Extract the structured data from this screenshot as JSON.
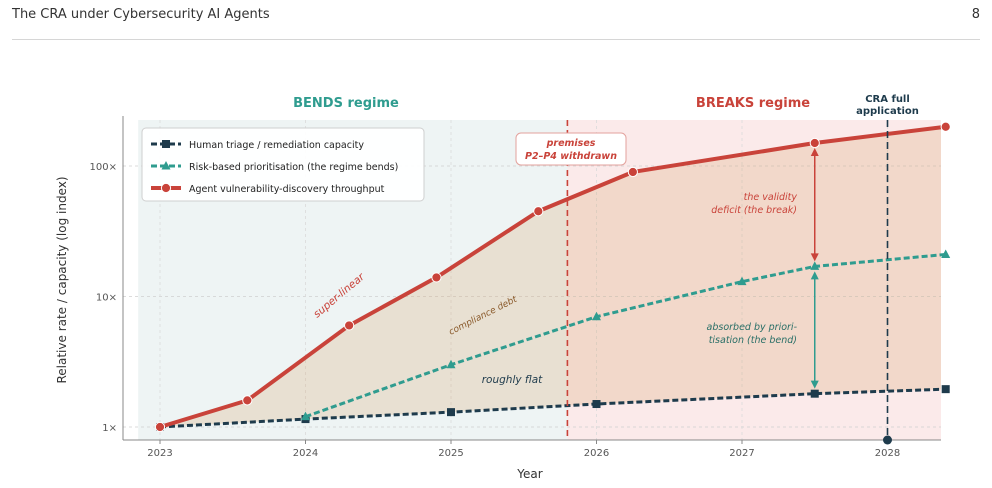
{
  "page": {
    "title": "The CRA under Cybersecurity AI Agents",
    "number": "8"
  },
  "chart_data": {
    "type": "line",
    "xlabel": "Year",
    "ylabel": "Relative rate / capacity (log index)",
    "x_ticks": [
      "2023",
      "2024",
      "2025",
      "2026",
      "2027",
      "2028"
    ],
    "y_ticks": [
      "1×",
      "10×",
      "100×"
    ],
    "xlim": [
      2022.85,
      2028.4
    ],
    "ylim": [
      0.92,
      240
    ],
    "y_scale": "log",
    "grid": true,
    "legend_position": "top-left",
    "series": [
      {
        "name": "Human triage / remediation capacity",
        "color": "#1e3b4c",
        "dash": true,
        "marker": "square",
        "x": [
          2023.0,
          2024.0,
          2025.0,
          2026.0,
          2027.5,
          2028.4
        ],
        "y": [
          1.0,
          1.15,
          1.3,
          1.5,
          1.8,
          1.95
        ]
      },
      {
        "name": "Risk-based prioritisation (the regime bends)",
        "color": "#2f9c8f",
        "dash": true,
        "marker": "triangle",
        "x": [
          2024.0,
          2025.0,
          2026.0,
          2027.0,
          2027.5,
          2028.4
        ],
        "y": [
          1.2,
          3.0,
          7.0,
          13.0,
          17.0,
          21.0
        ]
      },
      {
        "name": "Agent vulnerability-discovery throughput",
        "color": "#c9433a",
        "dash": false,
        "marker": "circle",
        "x": [
          2023.0,
          2023.6,
          2024.3,
          2024.9,
          2025.6,
          2026.25,
          2027.5,
          2028.4
        ],
        "y": [
          1.0,
          1.6,
          6.0,
          14.0,
          45.0,
          90.0,
          150.0,
          200.0
        ]
      }
    ],
    "regimes": [
      {
        "label": "BENDS regime",
        "from": 2022.85,
        "to": 2025.8,
        "color": "#2f9c8f"
      },
      {
        "label": "BREAKS regime",
        "from": 2025.8,
        "to": 2028.4,
        "color": "#c9433a"
      }
    ],
    "premises_marker": {
      "x": 2025.8,
      "line1": "premises",
      "line2": "P2–P4 withdrawn"
    },
    "cra_marker": {
      "x": 2028.0,
      "line1": "CRA full",
      "line2": "application"
    },
    "annotations": {
      "super_linear": "super-linear",
      "compliance_debt": "compliance debt",
      "roughly_flat": "roughly flat",
      "validity_1": "the validity",
      "validity_2": "deficit (the break)",
      "absorbed_1": "absorbed by priori-",
      "absorbed_2": "tisation (the bend)"
    },
    "arrows_x": 2027.5
  }
}
